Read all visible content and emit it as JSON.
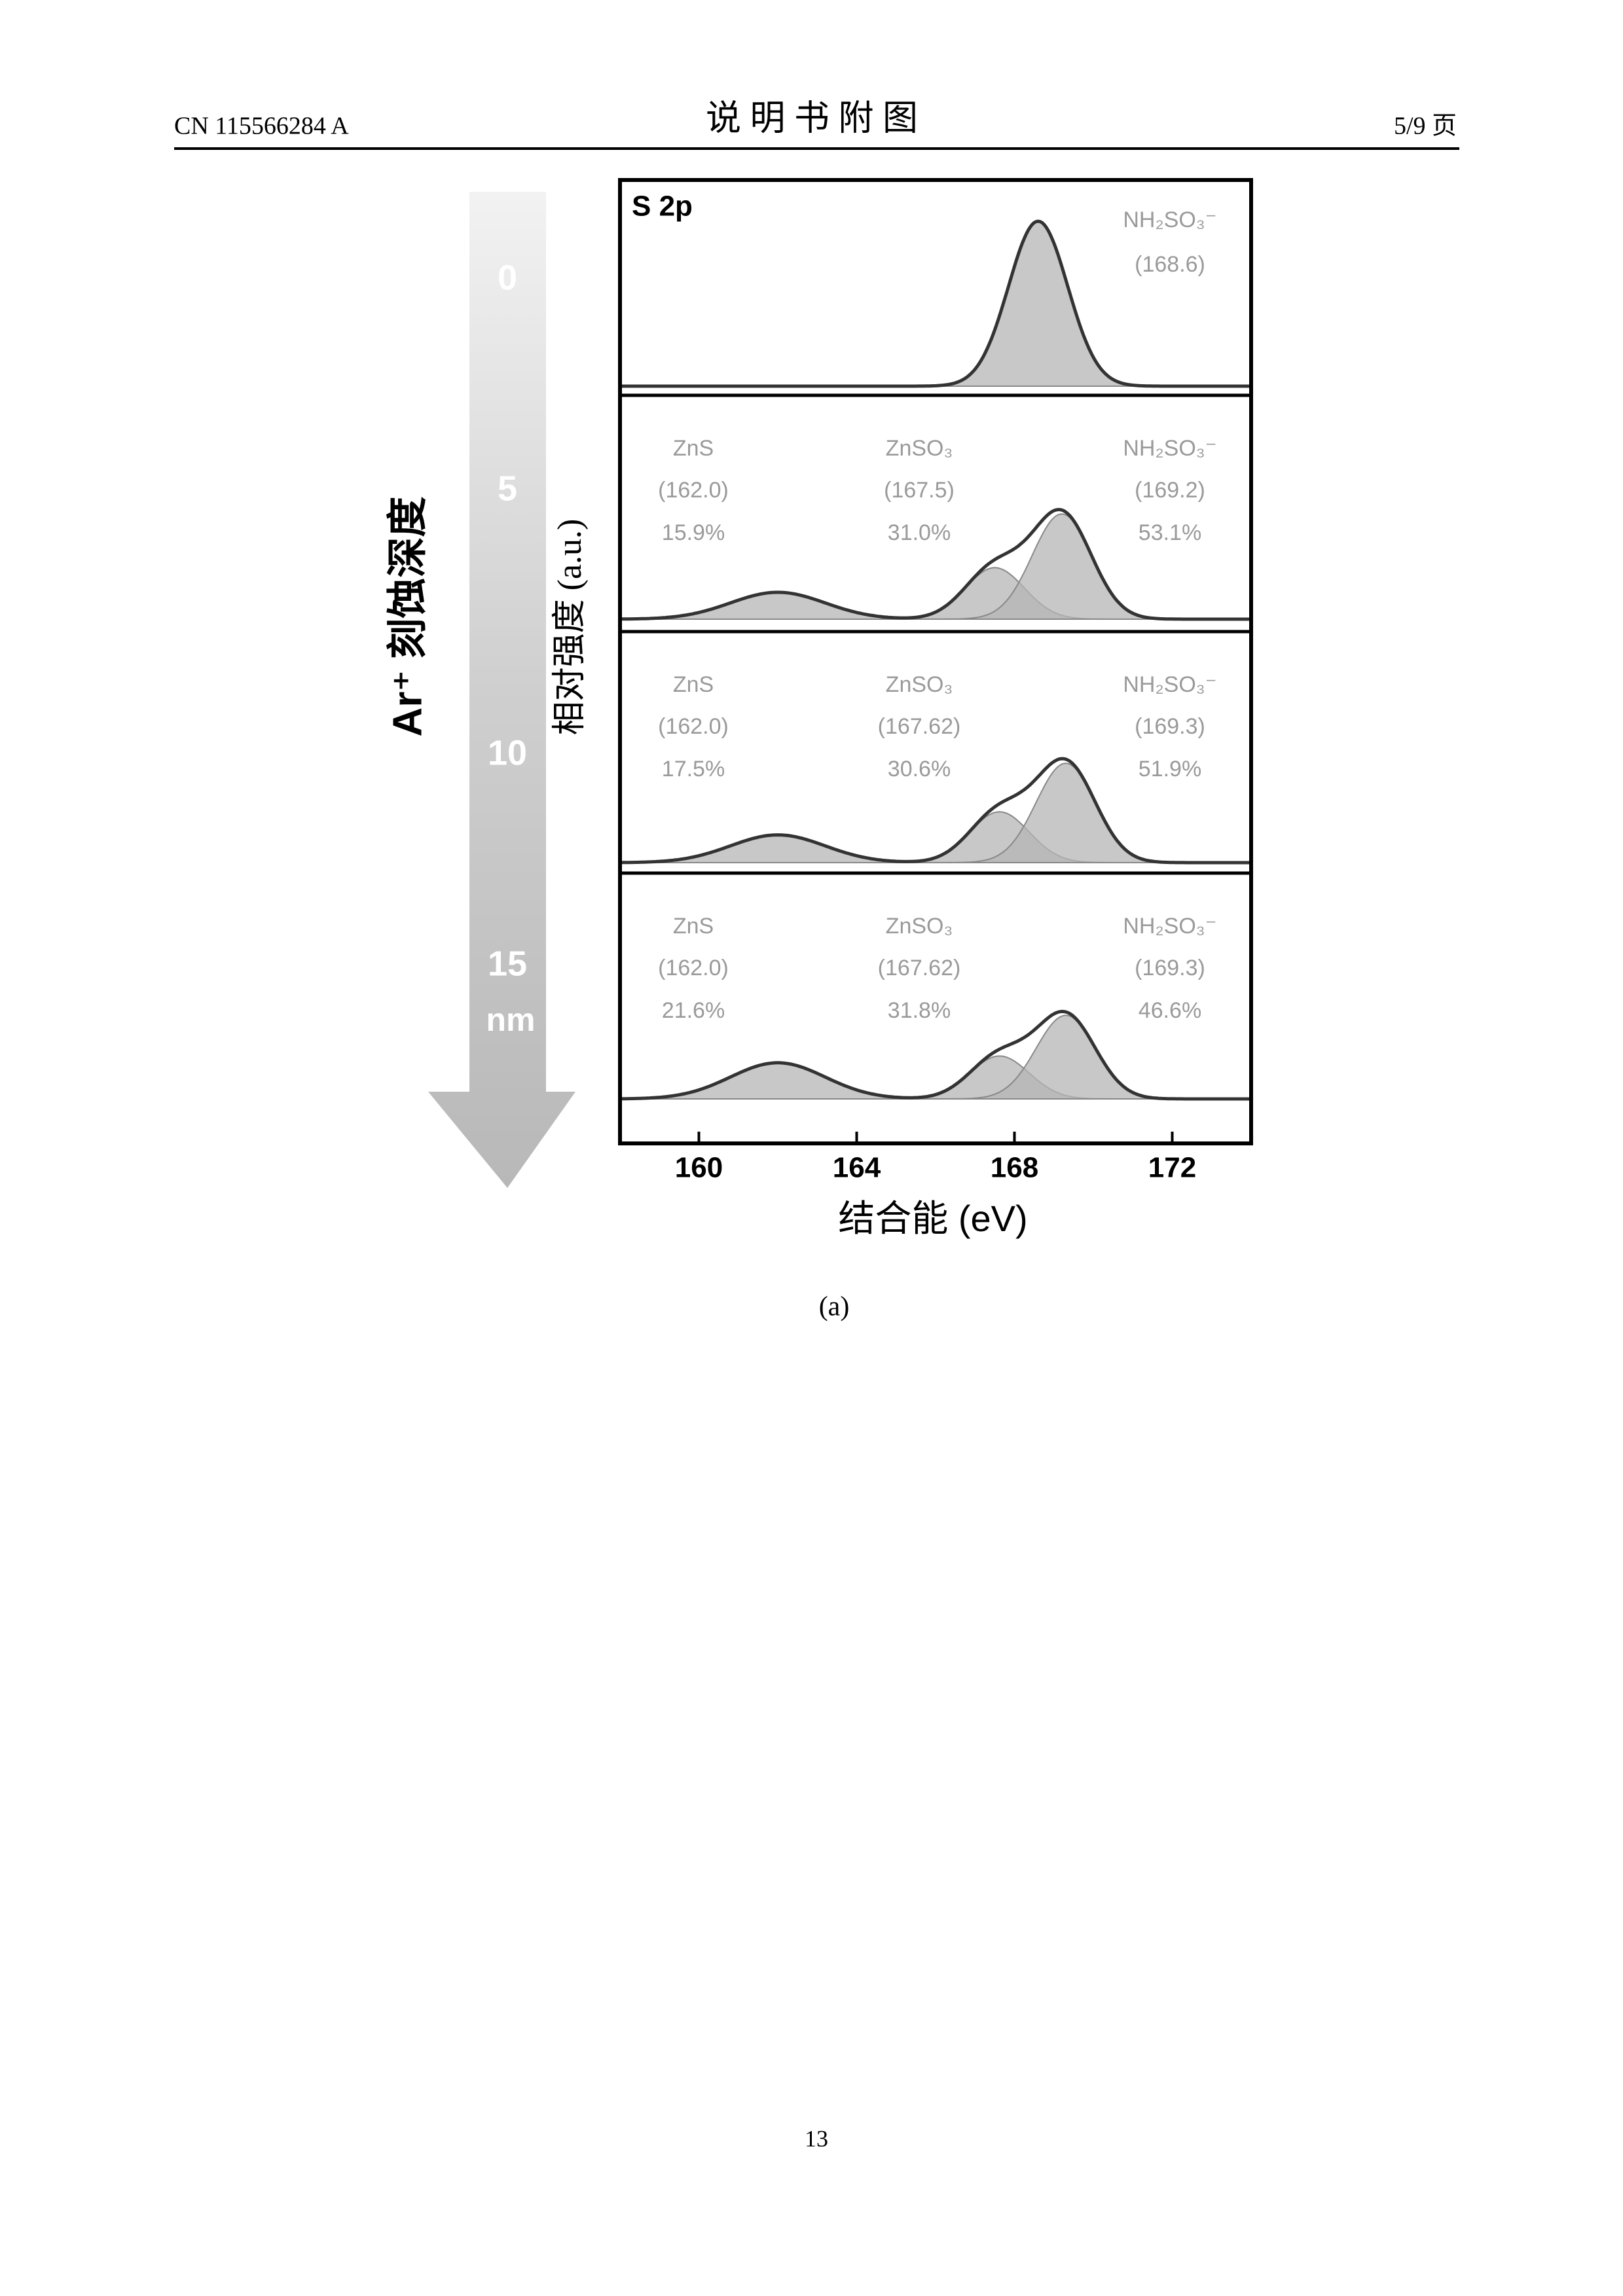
{
  "header": {
    "left": "CN 115566284 A",
    "title": "说 明 书 附 图",
    "right": "5/9 页"
  },
  "figure": {
    "panel_label": "S 2p",
    "x_label": "结合能 (eV)",
    "y_label": "相对强度 (a.u.)",
    "depth_label": "Ar⁺ 刻蚀深度",
    "depth_ticks": [
      "0",
      "5",
      "10",
      "15"
    ],
    "depth_unit": "nm",
    "xlim": [
      158,
      174
    ],
    "xticks": [
      160,
      164,
      168,
      172
    ],
    "panels": [
      {
        "peaks": [
          {
            "name": "NH₂SO₃⁻",
            "center": {
              "value": 168.6,
              "label": "(168.6)"
            },
            "height": 0.8
          }
        ]
      },
      {
        "peaks": [
          {
            "name": "ZnS",
            "center": {
              "value": 162.0,
              "label": "(162.0)"
            },
            "percent": {
              "value": 15.9,
              "label": "15.9%"
            },
            "height": 0.12
          },
          {
            "name": "ZnSO₃",
            "center": {
              "value": 167.5,
              "label": "(167.5)"
            },
            "percent": {
              "value": 31.0,
              "label": "31.0%"
            },
            "height": 0.23
          },
          {
            "name": "NH₂SO₃⁻",
            "center": {
              "value": 169.2,
              "label": "(169.2)"
            },
            "percent": {
              "value": 53.1,
              "label": "53.1%"
            },
            "height": 0.47
          }
        ]
      },
      {
        "peaks": [
          {
            "name": "ZnS",
            "center": {
              "value": 162.0,
              "label": "(162.0)"
            },
            "percent": {
              "value": 17.5,
              "label": "17.5%"
            },
            "height": 0.12
          },
          {
            "name": "ZnSO₃",
            "center": {
              "value": 167.62,
              "label": "(167.62)"
            },
            "percent": {
              "value": 30.6,
              "label": "30.6%"
            },
            "height": 0.22
          },
          {
            "name": "NH₂SO₃⁻",
            "center": {
              "value": 169.3,
              "label": "(169.3)"
            },
            "percent": {
              "value": 51.9,
              "label": "51.9%"
            },
            "height": 0.43
          }
        ]
      },
      {
        "peaks": [
          {
            "name": "ZnS",
            "center": {
              "value": 162.0,
              "label": "(162.0)"
            },
            "percent": {
              "value": 21.6,
              "label": "21.6%"
            },
            "height": 0.16
          },
          {
            "name": "ZnSO₃",
            "center": {
              "value": 167.62,
              "label": "(167.62)"
            },
            "percent": {
              "value": 31.8,
              "label": "31.8%"
            },
            "height": 0.19
          },
          {
            "name": "NH₂SO₃⁻",
            "center": {
              "value": 169.3,
              "label": "(169.3)"
            },
            "percent": {
              "value": 46.6,
              "label": "46.6%"
            },
            "height": 0.37
          }
        ]
      }
    ],
    "caption": "(a)"
  },
  "footer": {
    "page_number": "13"
  }
}
